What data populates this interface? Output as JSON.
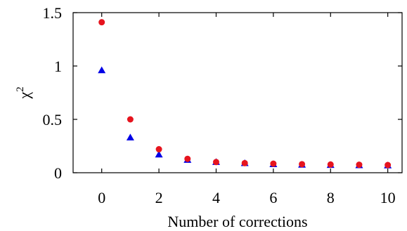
{
  "chart_data": {
    "type": "scatter",
    "xlabel": "Number of corrections",
    "ylabel": "χ",
    "ylabel_superscript": "2",
    "xlim": [
      -1,
      10.5
    ],
    "ylim": [
      0,
      1.5
    ],
    "x_ticks": [
      "0",
      "2",
      "4",
      "6",
      "8",
      "10"
    ],
    "y_ticks": [
      "0",
      "0.5",
      "1",
      "1.5"
    ],
    "grid": false,
    "series": [
      {
        "marker": "triangle",
        "color": "#0000e6",
        "x": [
          0,
          1,
          2,
          3,
          4,
          5,
          6,
          7,
          8,
          9,
          10
        ],
        "y": [
          0.96,
          0.33,
          0.17,
          0.12,
          0.1,
          0.09,
          0.08,
          0.075,
          0.072,
          0.07,
          0.068
        ]
      },
      {
        "marker": "circle",
        "color": "#e6141e",
        "x": [
          0,
          1,
          2,
          3,
          4,
          5,
          6,
          7,
          8,
          9,
          10
        ],
        "y": [
          1.41,
          0.5,
          0.22,
          0.13,
          0.1,
          0.09,
          0.085,
          0.08,
          0.077,
          0.075,
          0.072
        ]
      }
    ]
  }
}
